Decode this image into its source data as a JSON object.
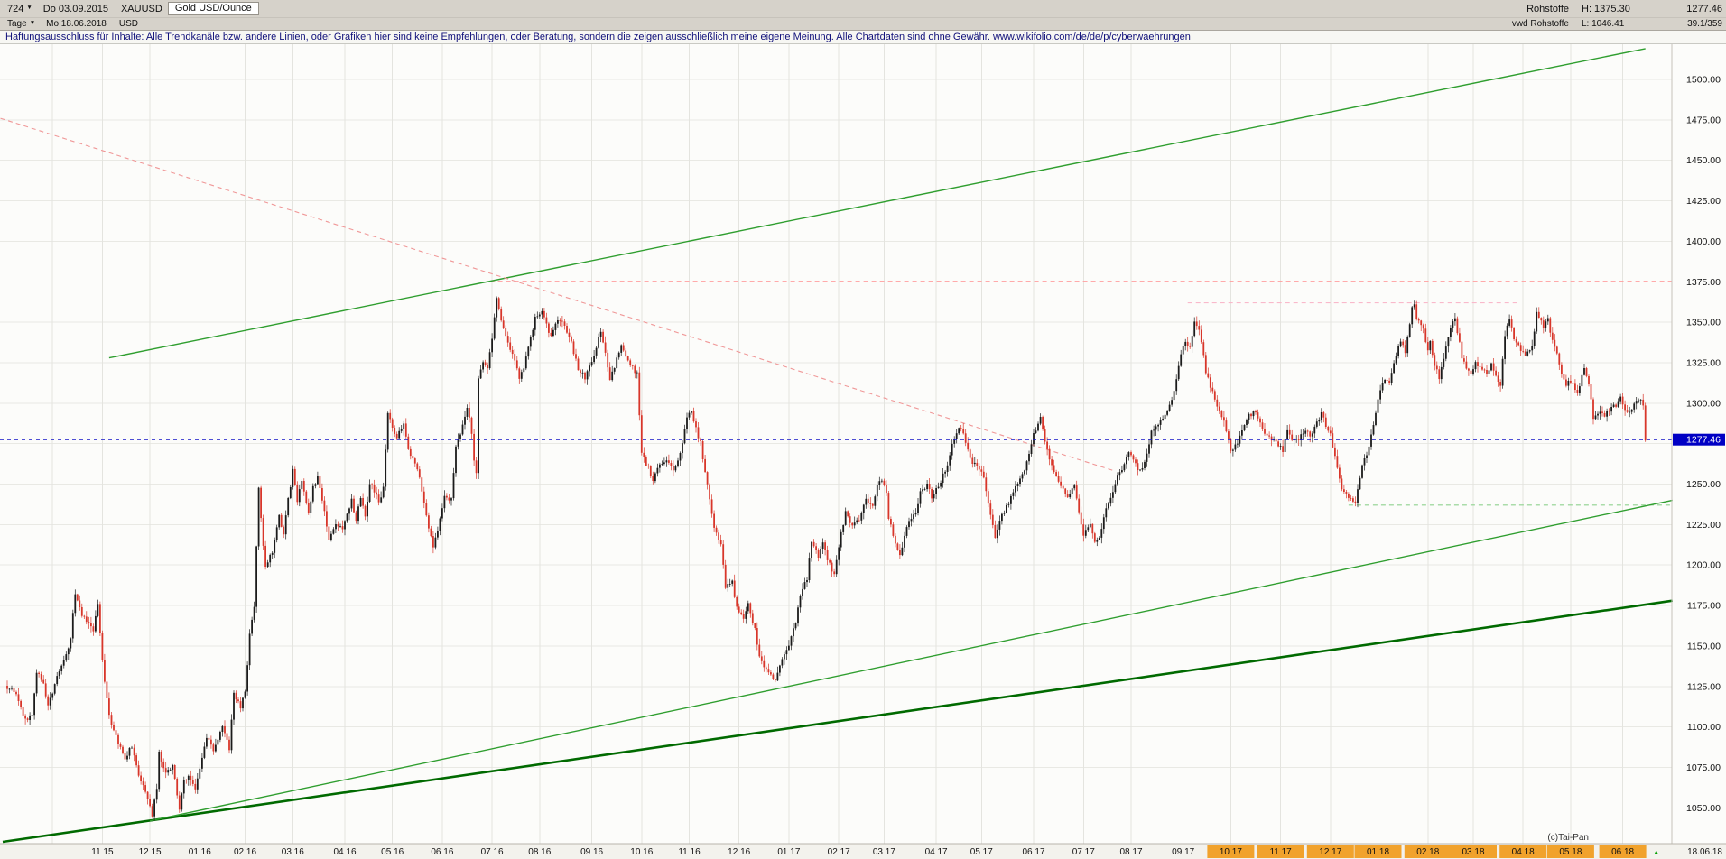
{
  "header": {
    "bars_count": "724",
    "dropdown_arrow": "▼",
    "start_date": "Do 03.09.2015",
    "symbol": "XAUUSD",
    "instrument": "Gold USD/Ounce",
    "period": "Tage",
    "end_date": "Mo 18.06.2018",
    "currency": "USD",
    "right": {
      "group": "Rohstoffe",
      "feed": "vwd Rohstoffe",
      "high": "H: 1375.30",
      "low": "L: 1046.41",
      "last": "1277.46",
      "ratio": "39.1/359"
    }
  },
  "disclaimer": "Haftungsausschluss für Inhalte: Alle Trendkanäle bzw. andere Linien, oder Grafiken hier sind keine Empfehlungen, oder Beratung, sondern die zeigen ausschließlich meine eigene Meinung. Alle Chartdaten sind ohne Gewähr.  www.wikifolio.com/de/de/p/cyberwaehrungen",
  "footer": {
    "copyright": "(c)Tai-Pan",
    "last_date": "18.06.18",
    "marker": "▲"
  },
  "colors": {
    "chart_bg": "#fcfcfa",
    "grid_h": "#e9e9e4",
    "grid_v": "#e4e4df",
    "candle_up": "#1b1b1b",
    "candle_down": "#d8362a",
    "last_price_blue": "#1414c8",
    "last_label_bg": "#0000c4",
    "axis_bg": "#f3f2ed",
    "month_highlight": "#f1a22c",
    "axis_text": "#111111",
    "copyright_text": "#333333",
    "marker_green": "#00a000"
  },
  "chart_data": {
    "type": "candlestick",
    "title": "Gold USD/Ounce",
    "symbol": "XAUUSD",
    "period": "Tage",
    "date_range": [
      "03.09.2015",
      "18.06.2018"
    ],
    "n_bars": 724,
    "last_price": 1277.46,
    "session_high": 1375.3,
    "session_low": 1046.41,
    "ylim": [
      1032,
      1505
    ],
    "grid_min": 1050,
    "grid_max": 1500,
    "grid_step": 25,
    "y_ticks": [
      "1500.00",
      "1475.00",
      "1450.00",
      "1425.00",
      "1400.00",
      "1375.00",
      "1350.00",
      "1325.00",
      "1300.00",
      "1250.00",
      "1225.00",
      "1200.00",
      "1175.00",
      "1150.00",
      "1125.00",
      "1100.00",
      "1075.00",
      "1050.00"
    ],
    "y_tick_values": [
      1500,
      1475,
      1450,
      1425,
      1400,
      1375,
      1350,
      1325,
      1300,
      1250,
      1225,
      1200,
      1175,
      1150,
      1125,
      1100,
      1075,
      1050
    ],
    "x_labels": [
      {
        "label": "",
        "day": 20
      },
      {
        "label": "11 15",
        "day": 42
      },
      {
        "label": "12 15",
        "day": 63
      },
      {
        "label": "01 16",
        "day": 85
      },
      {
        "label": "02 16",
        "day": 105
      },
      {
        "label": "03 16",
        "day": 126
      },
      {
        "label": "04 16",
        "day": 149
      },
      {
        "label": "05 16",
        "day": 170
      },
      {
        "label": "06 16",
        "day": 192
      },
      {
        "label": "07 16",
        "day": 214
      },
      {
        "label": "08 16",
        "day": 235
      },
      {
        "label": "09 16",
        "day": 258
      },
      {
        "label": "10 16",
        "day": 280
      },
      {
        "label": "11 16",
        "day": 301
      },
      {
        "label": "12 16",
        "day": 323
      },
      {
        "label": "01 17",
        "day": 345
      },
      {
        "label": "02 17",
        "day": 367
      },
      {
        "label": "03 17",
        "day": 387
      },
      {
        "label": "04 17",
        "day": 410
      },
      {
        "label": "05 17",
        "day": 430
      },
      {
        "label": "06 17",
        "day": 453
      },
      {
        "label": "07 17",
        "day": 475
      },
      {
        "label": "08 17",
        "day": 496
      },
      {
        "label": "09 17",
        "day": 519
      },
      {
        "label": "10 17",
        "day": 540,
        "hl": true
      },
      {
        "label": "11 17",
        "day": 562,
        "hl": true
      },
      {
        "label": "12 17",
        "day": 584,
        "hl": true
      },
      {
        "label": "01 18",
        "day": 605,
        "hl": true
      },
      {
        "label": "02 18",
        "day": 627,
        "hl": true
      },
      {
        "label": "03 18",
        "day": 647,
        "hl": true
      },
      {
        "label": "04 18",
        "day": 669,
        "hl": true
      },
      {
        "label": "05 18",
        "day": 690,
        "hl": true
      },
      {
        "label": "06 18",
        "day": 713,
        "hl": true
      }
    ],
    "trendlines": [
      {
        "name": "lower-channel-outer",
        "d1": -2,
        "p1": 1029,
        "d2": 735,
        "p2": 1178,
        "color": "#006a00",
        "width": 2.6
      },
      {
        "name": "lower-channel-inner",
        "d1": 63,
        "p1": 1042,
        "d2": 735,
        "p2": 1240,
        "color": "#2f9e2f",
        "width": 1.4
      },
      {
        "name": "upper-channel",
        "d1": 45,
        "p1": 1328,
        "d2": 723,
        "p2": 1519,
        "color": "#2f9e2f",
        "width": 1.4
      },
      {
        "name": "descending-resistance",
        "d1": -3,
        "p1": 1476,
        "d2": 489,
        "p2": 1258,
        "color": "#f09898",
        "width": 1.1,
        "dash": "5,4"
      }
    ],
    "hlines": [
      {
        "name": "resistance-1375",
        "price": 1375.3,
        "d1": 213,
        "d2": null,
        "color": "#ff9e9e",
        "dash": "5,4"
      },
      {
        "name": "resistance-1362",
        "price": 1362,
        "d1": 521,
        "d2": 667,
        "color": "#f9b9cb",
        "dash": "5,4"
      },
      {
        "name": "support-1237",
        "price": 1237,
        "d1": 592,
        "d2": null,
        "color": "#8ed28e",
        "dash": "5,4"
      },
      {
        "name": "support-1124",
        "price": 1124,
        "d1": 328,
        "d2": 362,
        "color": "#8ed28e",
        "dash": "5,4"
      }
    ],
    "last_price_line": {
      "price": 1277.46,
      "label": "1277.46"
    },
    "price_anchors": [
      [
        0,
        1124
      ],
      [
        4,
        1121
      ],
      [
        8,
        1104
      ],
      [
        11,
        1108
      ],
      [
        13,
        1134
      ],
      [
        16,
        1126
      ],
      [
        18,
        1112
      ],
      [
        22,
        1131
      ],
      [
        25,
        1140
      ],
      [
        28,
        1155
      ],
      [
        30,
        1183
      ],
      [
        33,
        1168
      ],
      [
        36,
        1164
      ],
      [
        38,
        1158
      ],
      [
        40,
        1176
      ],
      [
        42,
        1141
      ],
      [
        45,
        1106
      ],
      [
        49,
        1090
      ],
      [
        52,
        1081
      ],
      [
        55,
        1088
      ],
      [
        58,
        1070
      ],
      [
        62,
        1057
      ],
      [
        64,
        1046
      ],
      [
        66,
        1061
      ],
      [
        67,
        1084
      ],
      [
        70,
        1072
      ],
      [
        73,
        1076
      ],
      [
        76,
        1050
      ],
      [
        78,
        1066
      ],
      [
        80,
        1070
      ],
      [
        83,
        1060
      ],
      [
        85,
        1075
      ],
      [
        88,
        1094
      ],
      [
        91,
        1086
      ],
      [
        95,
        1101
      ],
      [
        98,
        1087
      ],
      [
        100,
        1120
      ],
      [
        103,
        1112
      ],
      [
        105,
        1122
      ],
      [
        107,
        1157
      ],
      [
        109,
        1175
      ],
      [
        111,
        1247
      ],
      [
        113,
        1211
      ],
      [
        114,
        1200
      ],
      [
        117,
        1208
      ],
      [
        120,
        1230
      ],
      [
        122,
        1220
      ],
      [
        124,
        1240
      ],
      [
        126,
        1258
      ],
      [
        128,
        1240
      ],
      [
        130,
        1253
      ],
      [
        133,
        1232
      ],
      [
        135,
        1248
      ],
      [
        137,
        1255
      ],
      [
        140,
        1232
      ],
      [
        142,
        1216
      ],
      [
        145,
        1224
      ],
      [
        148,
        1222
      ],
      [
        150,
        1232
      ],
      [
        152,
        1240
      ],
      [
        154,
        1228
      ],
      [
        156,
        1242
      ],
      [
        158,
        1230
      ],
      [
        160,
        1250
      ],
      [
        162,
        1246
      ],
      [
        164,
        1238
      ],
      [
        166,
        1248
      ],
      [
        168,
        1293
      ],
      [
        170,
        1286
      ],
      [
        172,
        1278
      ],
      [
        175,
        1288
      ],
      [
        177,
        1271
      ],
      [
        180,
        1262
      ],
      [
        182,
        1255
      ],
      [
        185,
        1230
      ],
      [
        188,
        1212
      ],
      [
        190,
        1220
      ],
      [
        193,
        1244
      ],
      [
        196,
        1240
      ],
      [
        198,
        1274
      ],
      [
        200,
        1280
      ],
      [
        203,
        1298
      ],
      [
        205,
        1282
      ],
      [
        206,
        1265
      ],
      [
        207,
        1258
      ],
      [
        208,
        1316
      ],
      [
        210,
        1324
      ],
      [
        212,
        1322
      ],
      [
        214,
        1340
      ],
      [
        216,
        1366
      ],
      [
        218,
        1352
      ],
      [
        220,
        1342
      ],
      [
        223,
        1330
      ],
      [
        226,
        1315
      ],
      [
        228,
        1322
      ],
      [
        231,
        1340
      ],
      [
        233,
        1352
      ],
      [
        236,
        1357
      ],
      [
        238,
        1348
      ],
      [
        240,
        1341
      ],
      [
        243,
        1352
      ],
      [
        246,
        1348
      ],
      [
        249,
        1337
      ],
      [
        252,
        1321
      ],
      [
        255,
        1316
      ],
      [
        258,
        1325
      ],
      [
        260,
        1335
      ],
      [
        262,
        1344
      ],
      [
        264,
        1330
      ],
      [
        266,
        1315
      ],
      [
        268,
        1323
      ],
      [
        271,
        1335
      ],
      [
        273,
        1328
      ],
      [
        276,
        1322
      ],
      [
        278,
        1318
      ],
      [
        280,
        1268
      ],
      [
        283,
        1260
      ],
      [
        285,
        1253
      ],
      [
        288,
        1262
      ],
      [
        291,
        1266
      ],
      [
        294,
        1258
      ],
      [
        297,
        1269
      ],
      [
        300,
        1290
      ],
      [
        302,
        1296
      ],
      [
        304,
        1284
      ],
      [
        306,
        1275
      ],
      [
        308,
        1258
      ],
      [
        310,
        1240
      ],
      [
        312,
        1224
      ],
      [
        315,
        1212
      ],
      [
        317,
        1186
      ],
      [
        320,
        1190
      ],
      [
        322,
        1173
      ],
      [
        325,
        1168
      ],
      [
        327,
        1175
      ],
      [
        330,
        1160
      ],
      [
        332,
        1143
      ],
      [
        335,
        1136
      ],
      [
        337,
        1131
      ],
      [
        339,
        1128
      ],
      [
        341,
        1139
      ],
      [
        343,
        1146
      ],
      [
        345,
        1151
      ],
      [
        348,
        1165
      ],
      [
        350,
        1182
      ],
      [
        353,
        1192
      ],
      [
        355,
        1215
      ],
      [
        358,
        1206
      ],
      [
        360,
        1213
      ],
      [
        363,
        1200
      ],
      [
        365,
        1195
      ],
      [
        368,
        1220
      ],
      [
        370,
        1232
      ],
      [
        373,
        1225
      ],
      [
        376,
        1228
      ],
      [
        379,
        1240
      ],
      [
        382,
        1237
      ],
      [
        384,
        1248
      ],
      [
        386,
        1253
      ],
      [
        388,
        1245
      ],
      [
        389,
        1230
      ],
      [
        392,
        1212
      ],
      [
        394,
        1205
      ],
      [
        396,
        1218
      ],
      [
        398,
        1226
      ],
      [
        401,
        1232
      ],
      [
        403,
        1245
      ],
      [
        406,
        1250
      ],
      [
        408,
        1242
      ],
      [
        410,
        1246
      ],
      [
        412,
        1252
      ],
      [
        415,
        1262
      ],
      [
        417,
        1275
      ],
      [
        420,
        1286
      ],
      [
        422,
        1281
      ],
      [
        424,
        1270
      ],
      [
        426,
        1264
      ],
      [
        429,
        1258
      ],
      [
        431,
        1255
      ],
      [
        433,
        1238
      ],
      [
        436,
        1216
      ],
      [
        438,
        1228
      ],
      [
        441,
        1236
      ],
      [
        444,
        1244
      ],
      [
        446,
        1251
      ],
      [
        449,
        1258
      ],
      [
        451,
        1269
      ],
      [
        453,
        1280
      ],
      [
        456,
        1293
      ],
      [
        458,
        1275
      ],
      [
        461,
        1261
      ],
      [
        463,
        1254
      ],
      [
        466,
        1246
      ],
      [
        468,
        1242
      ],
      [
        471,
        1249
      ],
      [
        473,
        1232
      ],
      [
        475,
        1219
      ],
      [
        478,
        1224
      ],
      [
        480,
        1213
      ],
      [
        482,
        1217
      ],
      [
        485,
        1234
      ],
      [
        488,
        1245
      ],
      [
        490,
        1255
      ],
      [
        493,
        1262
      ],
      [
        495,
        1269
      ],
      [
        497,
        1264
      ],
      [
        500,
        1258
      ],
      [
        502,
        1264
      ],
      [
        505,
        1282
      ],
      [
        508,
        1286
      ],
      [
        510,
        1291
      ],
      [
        513,
        1298
      ],
      [
        515,
        1309
      ],
      [
        518,
        1330
      ],
      [
        520,
        1339
      ],
      [
        522,
        1334
      ],
      [
        524,
        1351
      ],
      [
        526,
        1346
      ],
      [
        529,
        1320
      ],
      [
        531,
        1311
      ],
      [
        534,
        1297
      ],
      [
        537,
        1288
      ],
      [
        540,
        1271
      ],
      [
        543,
        1276
      ],
      [
        545,
        1284
      ],
      [
        548,
        1292
      ],
      [
        550,
        1295
      ],
      [
        553,
        1289
      ],
      [
        555,
        1282
      ],
      [
        558,
        1278
      ],
      [
        560,
        1276
      ],
      [
        563,
        1271
      ],
      [
        565,
        1282
      ],
      [
        568,
        1276
      ],
      [
        570,
        1278
      ],
      [
        573,
        1283
      ],
      [
        575,
        1280
      ],
      [
        578,
        1288
      ],
      [
        580,
        1294
      ],
      [
        582,
        1286
      ],
      [
        584,
        1280
      ],
      [
        586,
        1266
      ],
      [
        589,
        1248
      ],
      [
        591,
        1244
      ],
      [
        593,
        1241
      ],
      [
        595,
        1237
      ],
      [
        598,
        1262
      ],
      [
        600,
        1268
      ],
      [
        603,
        1287
      ],
      [
        605,
        1302
      ],
      [
        607,
        1313
      ],
      [
        610,
        1313
      ],
      [
        612,
        1326
      ],
      [
        615,
        1339
      ],
      [
        617,
        1332
      ],
      [
        620,
        1358
      ],
      [
        621,
        1362
      ],
      [
        622,
        1352
      ],
      [
        625,
        1345
      ],
      [
        627,
        1332
      ],
      [
        628,
        1337
      ],
      [
        630,
        1324
      ],
      [
        632,
        1316
      ],
      [
        634,
        1328
      ],
      [
        637,
        1347
      ],
      [
        639,
        1352
      ],
      [
        642,
        1329
      ],
      [
        644,
        1321
      ],
      [
        646,
        1317
      ],
      [
        648,
        1325
      ],
      [
        651,
        1322
      ],
      [
        653,
        1318
      ],
      [
        655,
        1325
      ],
      [
        657,
        1316
      ],
      [
        659,
        1311
      ],
      [
        661,
        1342
      ],
      [
        663,
        1351
      ],
      [
        665,
        1340
      ],
      [
        668,
        1333
      ],
      [
        670,
        1328
      ],
      [
        673,
        1336
      ],
      [
        675,
        1355
      ],
      [
        678,
        1347
      ],
      [
        680,
        1353
      ],
      [
        681,
        1345
      ],
      [
        683,
        1336
      ],
      [
        686,
        1317
      ],
      [
        688,
        1312
      ],
      [
        691,
        1313
      ],
      [
        693,
        1306
      ],
      [
        696,
        1322
      ],
      [
        698,
        1313
      ],
      [
        700,
        1290
      ],
      [
        702,
        1294
      ],
      [
        705,
        1292
      ],
      [
        707,
        1296
      ],
      [
        710,
        1299
      ],
      [
        712,
        1303
      ],
      [
        714,
        1297
      ],
      [
        716,
        1294
      ],
      [
        718,
        1299
      ],
      [
        720,
        1301
      ],
      [
        721,
        1302
      ],
      [
        722,
        1298
      ],
      [
        723,
        1278
      ]
    ]
  }
}
